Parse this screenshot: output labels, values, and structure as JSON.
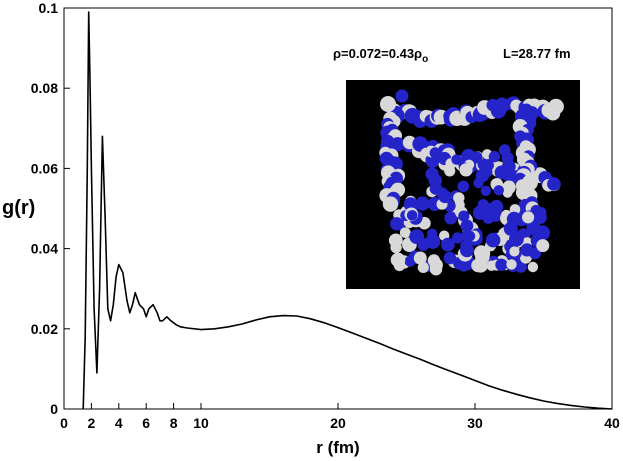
{
  "chart_data": {
    "type": "line",
    "title": "",
    "xlabel": "r (fm)",
    "ylabel": "g(r)",
    "xlim": [
      0,
      40
    ],
    "ylim": [
      0,
      0.1
    ],
    "x_ticks": [
      0,
      2,
      4,
      6,
      8,
      10,
      20,
      30,
      40
    ],
    "x_tick_labels": [
      "0",
      "2",
      "4",
      "6",
      "8",
      "10",
      "20",
      "30",
      "40"
    ],
    "y_ticks": [
      0,
      0.02,
      0.04,
      0.06,
      0.08,
      0.1
    ],
    "y_tick_labels": [
      "0",
      "0.02",
      "0.04",
      "0.06",
      "0.08",
      "0.1"
    ],
    "grid": false,
    "legend": "none",
    "line_color": "#000000",
    "series": [
      {
        "x": [
          1.4,
          1.55,
          1.7,
          1.8,
          1.9,
          2.0,
          2.2,
          2.4,
          2.6,
          2.8,
          3.0,
          3.2,
          3.4,
          3.6,
          3.8,
          4.0,
          4.3,
          4.6,
          4.8,
          5.0,
          5.2,
          5.5,
          5.8,
          6.0,
          6.2,
          6.5,
          6.8,
          7.0,
          7.2,
          7.5,
          7.8,
          8.2,
          8.5,
          9.0,
          10.0,
          11.0,
          12.0,
          13.0,
          14.0,
          15.0,
          16.0,
          17.0,
          18.0,
          19.0,
          20.0,
          21.0,
          22.0,
          23.0,
          24.0,
          25.0,
          26.0,
          27.0,
          28.0,
          29.0,
          30.0,
          31.0,
          32.0,
          33.0,
          34.0,
          35.0,
          36.0,
          37.0,
          38.0,
          39.0,
          40.0
        ],
        "y": [
          0.0,
          0.018,
          0.06,
          0.099,
          0.082,
          0.06,
          0.025,
          0.009,
          0.03,
          0.068,
          0.048,
          0.025,
          0.022,
          0.026,
          0.033,
          0.036,
          0.034,
          0.027,
          0.024,
          0.026,
          0.029,
          0.026,
          0.025,
          0.023,
          0.025,
          0.026,
          0.024,
          0.022,
          0.022,
          0.023,
          0.022,
          0.021,
          0.0205,
          0.0202,
          0.0198,
          0.02,
          0.0205,
          0.0212,
          0.0222,
          0.023,
          0.0233,
          0.0232,
          0.0225,
          0.0215,
          0.0203,
          0.019,
          0.0177,
          0.0164,
          0.015,
          0.0137,
          0.0124,
          0.011,
          0.0097,
          0.0084,
          0.0071,
          0.0058,
          0.0047,
          0.0037,
          0.0028,
          0.002,
          0.0014,
          0.0009,
          0.0005,
          0.0002,
          0.0
        ]
      }
    ]
  },
  "annotations": {
    "density": {
      "prefix": "ρ=0.072=0.43ρ",
      "subscript": "o"
    },
    "box_length": "L=28.77 fm"
  },
  "inset": {
    "background": "#000000",
    "sphere_colors": [
      "#2424c8",
      "#d8d8d8"
    ]
  }
}
